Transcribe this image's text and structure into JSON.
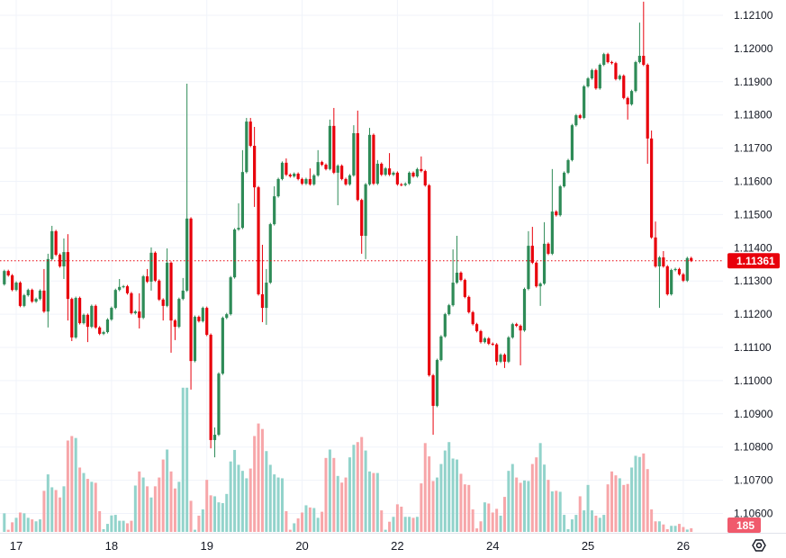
{
  "chart_data": {
    "type": "candlestick",
    "title": "",
    "xlabel": "",
    "ylabel": "",
    "ylim": [
      1.1057,
      1.12145
    ],
    "grid": true,
    "x_tick_labels": [
      {
        "label": "17",
        "index": 3
      },
      {
        "label": "18",
        "index": 27
      },
      {
        "label": "19",
        "index": 51
      },
      {
        "label": "20",
        "index": 75
      },
      {
        "label": "22",
        "index": 99
      },
      {
        "label": "24",
        "index": 123
      },
      {
        "label": "25",
        "index": 147
      },
      {
        "label": "26",
        "index": 171
      }
    ],
    "y_tick_labels": [
      "1.12100",
      "1.12000",
      "1.11900",
      "1.11800",
      "1.11700",
      "1.11600",
      "1.11500",
      "1.11400",
      "1.11300",
      "1.11200",
      "1.11100",
      "1.11000",
      "1.10900",
      "1.10800",
      "1.10700",
      "1.10600"
    ],
    "last_price": "1.11361",
    "last_price_value": 1.11361,
    "last_volume": "185",
    "colors": {
      "up": "#2e8b57",
      "down": "#e8000b",
      "up_volume": "#92d3cb",
      "down_volume": "#f7a6a9",
      "price_badge": "#e8000b",
      "volume_badge": "#f05a6c",
      "grid": "#f0f3fa"
    },
    "first_open": 1.1129,
    "close": [
      1.1133,
      1.11317,
      1.11273,
      1.11295,
      1.11225,
      1.11257,
      1.11273,
      1.11238,
      1.11246,
      1.11271,
      1.11208,
      1.11366,
      1.1145,
      1.11379,
      1.11344,
      1.11387,
      1.11246,
      1.1113,
      1.11249,
      1.11173,
      1.11198,
      1.11162,
      1.11225,
      1.1116,
      1.11141,
      1.11146,
      1.11184,
      1.11219,
      1.11273,
      1.11282,
      1.11284,
      1.11263,
      1.11203,
      1.11208,
      1.11189,
      1.11314,
      1.11298,
      1.11385,
      1.11301,
      1.11244,
      1.11225,
      1.11355,
      1.11181,
      1.11162,
      1.11246,
      1.11271,
      1.11488,
      1.11059,
      1.11192,
      1.11179,
      1.11219,
      1.11138,
      1.10821,
      1.10837,
      1.11021,
      1.11189,
      1.112,
      1.11311,
      1.11455,
      1.1146,
      1.11628,
      1.1178,
      1.11707,
      1.11582,
      1.1126,
      1.11219,
      1.11295,
      1.11471,
      1.11555,
      1.11607,
      1.11656,
      1.1162,
      1.11615,
      1.11623,
      1.11607,
      1.11593,
      1.11607,
      1.11591,
      1.11618,
      1.11658,
      1.1165,
      1.11637,
      1.11767,
      1.11626,
      1.11647,
      1.11607,
      1.11591,
      1.11618,
      1.11745,
      1.11544,
      1.11436,
      1.11591,
      1.1174,
      1.11593,
      1.11653,
      1.1162,
      1.11639,
      1.1162,
      1.11626,
      1.11591,
      1.11589,
      1.11593,
      1.11626,
      1.11615,
      1.11637,
      1.11631,
      1.11588,
      1.11016,
      1.10924,
      1.11062,
      1.11133,
      1.112,
      1.11227,
      1.11295,
      1.11325,
      1.11303,
      1.11252,
      1.11206,
      1.1117,
      1.11149,
      1.11116,
      1.11127,
      1.11111,
      1.11109,
      1.11057,
      1.11078,
      1.11057,
      1.1113,
      1.1117,
      1.11165,
      1.11151,
      1.11276,
      1.11406,
      1.11355,
      1.11284,
      1.11292,
      1.11412,
      1.11382,
      1.11509,
      1.11498,
      1.11585,
      1.11626,
      1.11664,
      1.11769,
      1.11799,
      1.11791,
      1.11886,
      1.1191,
      1.11935,
      1.1188,
      1.11951,
      1.11983,
      1.11959,
      1.11956,
      1.11908,
      1.11918,
      1.11851,
      1.11832,
      1.11872,
      1.11959,
      1.11978,
      1.11951,
      1.11729,
      1.11431,
      1.11344,
      1.11371,
      1.11344,
      1.1126,
      1.11333,
      1.11336,
      1.1132,
      1.11301,
      1.11369,
      1.11361
    ],
    "high": {
      "10": 1.11336,
      "11": 1.11382,
      "12": 1.11466,
      "15": 1.11428,
      "16": 1.11441,
      "29": 1.11306,
      "34": 1.11263,
      "36": 1.11336,
      "37": 1.11401,
      "41": 1.11398,
      "45": 1.11309,
      "46": 1.11894,
      "53": 1.10859,
      "59": 1.11534,
      "60": 1.11694,
      "61": 1.11791,
      "62": 1.11791,
      "63": 1.11764,
      "65": 1.11409,
      "66": 1.11336,
      "68": 1.11585,
      "71": 1.11669,
      "77": 1.11639,
      "79": 1.11694,
      "82": 1.11786,
      "83": 1.11821,
      "88": 1.11769,
      "89": 1.11813,
      "92": 1.11761,
      "94": 1.11664,
      "97": 1.11685,
      "105": 1.11675,
      "113": 1.11395,
      "114": 1.11436,
      "132": 1.1145,
      "133": 1.11463,
      "136": 1.11477,
      "138": 1.11637,
      "160": 1.12078,
      "161": 1.12141,
      "163": 1.11753,
      "164": 1.11479,
      "166": 1.1139
    },
    "low": {
      "11": 1.1116,
      "15": 1.11306,
      "16": 1.11181,
      "17": 1.11119,
      "21": 1.11116,
      "34": 1.11157,
      "37": 1.11271,
      "40": 1.11181,
      "42": 1.11084,
      "43": 1.11122,
      "47": 1.10973,
      "52": 1.10796,
      "53": 1.10769,
      "63": 1.11523,
      "65": 1.11176,
      "66": 1.11168,
      "84": 1.11528,
      "90": 1.11382,
      "91": 1.11366,
      "108": 1.10837,
      "124": 1.11046,
      "126": 1.11038,
      "130": 1.11046,
      "135": 1.11225,
      "157": 1.11786,
      "162": 1.11653,
      "165": 1.11219
    },
    "volume": [
      950,
      110,
      490,
      720,
      990,
      950,
      720,
      640,
      540,
      640,
      2100,
      2940,
      2280,
      2140,
      1760,
      2330,
      4670,
      4900,
      4800,
      3290,
      3010,
      2710,
      2560,
      2510,
      1060,
      140,
      410,
      840,
      870,
      570,
      570,
      440,
      570,
      2370,
      3090,
      2780,
      2330,
      1760,
      2330,
      2780,
      3700,
      4210,
      3090,
      2220,
      2560,
      7370,
      7370,
      1590,
      110,
      830,
      1150,
      2660,
      1870,
      1820,
      1510,
      1470,
      1940,
      3600,
      4190,
      3430,
      3120,
      2740,
      3240,
      4900,
      5540,
      5260,
      4130,
      3430,
      2940,
      2780,
      2740,
      1060,
      110,
      440,
      690,
      990,
      1360,
      1250,
      1220,
      720,
      1030,
      3780,
      4210,
      3780,
      2860,
      2520,
      2780,
      3810,
      4450,
      4590,
      4850,
      4160,
      3090,
      3010,
      3010,
      1100,
      110,
      520,
      770,
      1410,
      1290,
      770,
      770,
      720,
      770,
      2480,
      4540,
      3860,
      2600,
      2780,
      3470,
      4160,
      4590,
      3750,
      3700,
      2970,
      2430,
      2400,
      1150,
      180,
      540,
      1510,
      1450,
      990,
      1180,
      830,
      1790,
      3120,
      3470,
      2780,
      2510,
      2630,
      2600,
      3470,
      3810,
      4540,
      3440,
      2660,
      2070,
      2100,
      2050,
      870,
      140,
      640,
      870,
      1820,
      1100,
      2400,
      1100,
      830,
      720,
      870,
      2430,
      3090,
      2890,
      2740,
      2400,
      2450,
      3290,
      3890,
      3830,
      4010,
      3210,
      1150,
      540,
      540,
      380,
      140,
      310,
      310,
      410,
      250,
      120,
      185
    ]
  },
  "controls": {
    "settings_icon": "settings-hexagon-icon"
  }
}
